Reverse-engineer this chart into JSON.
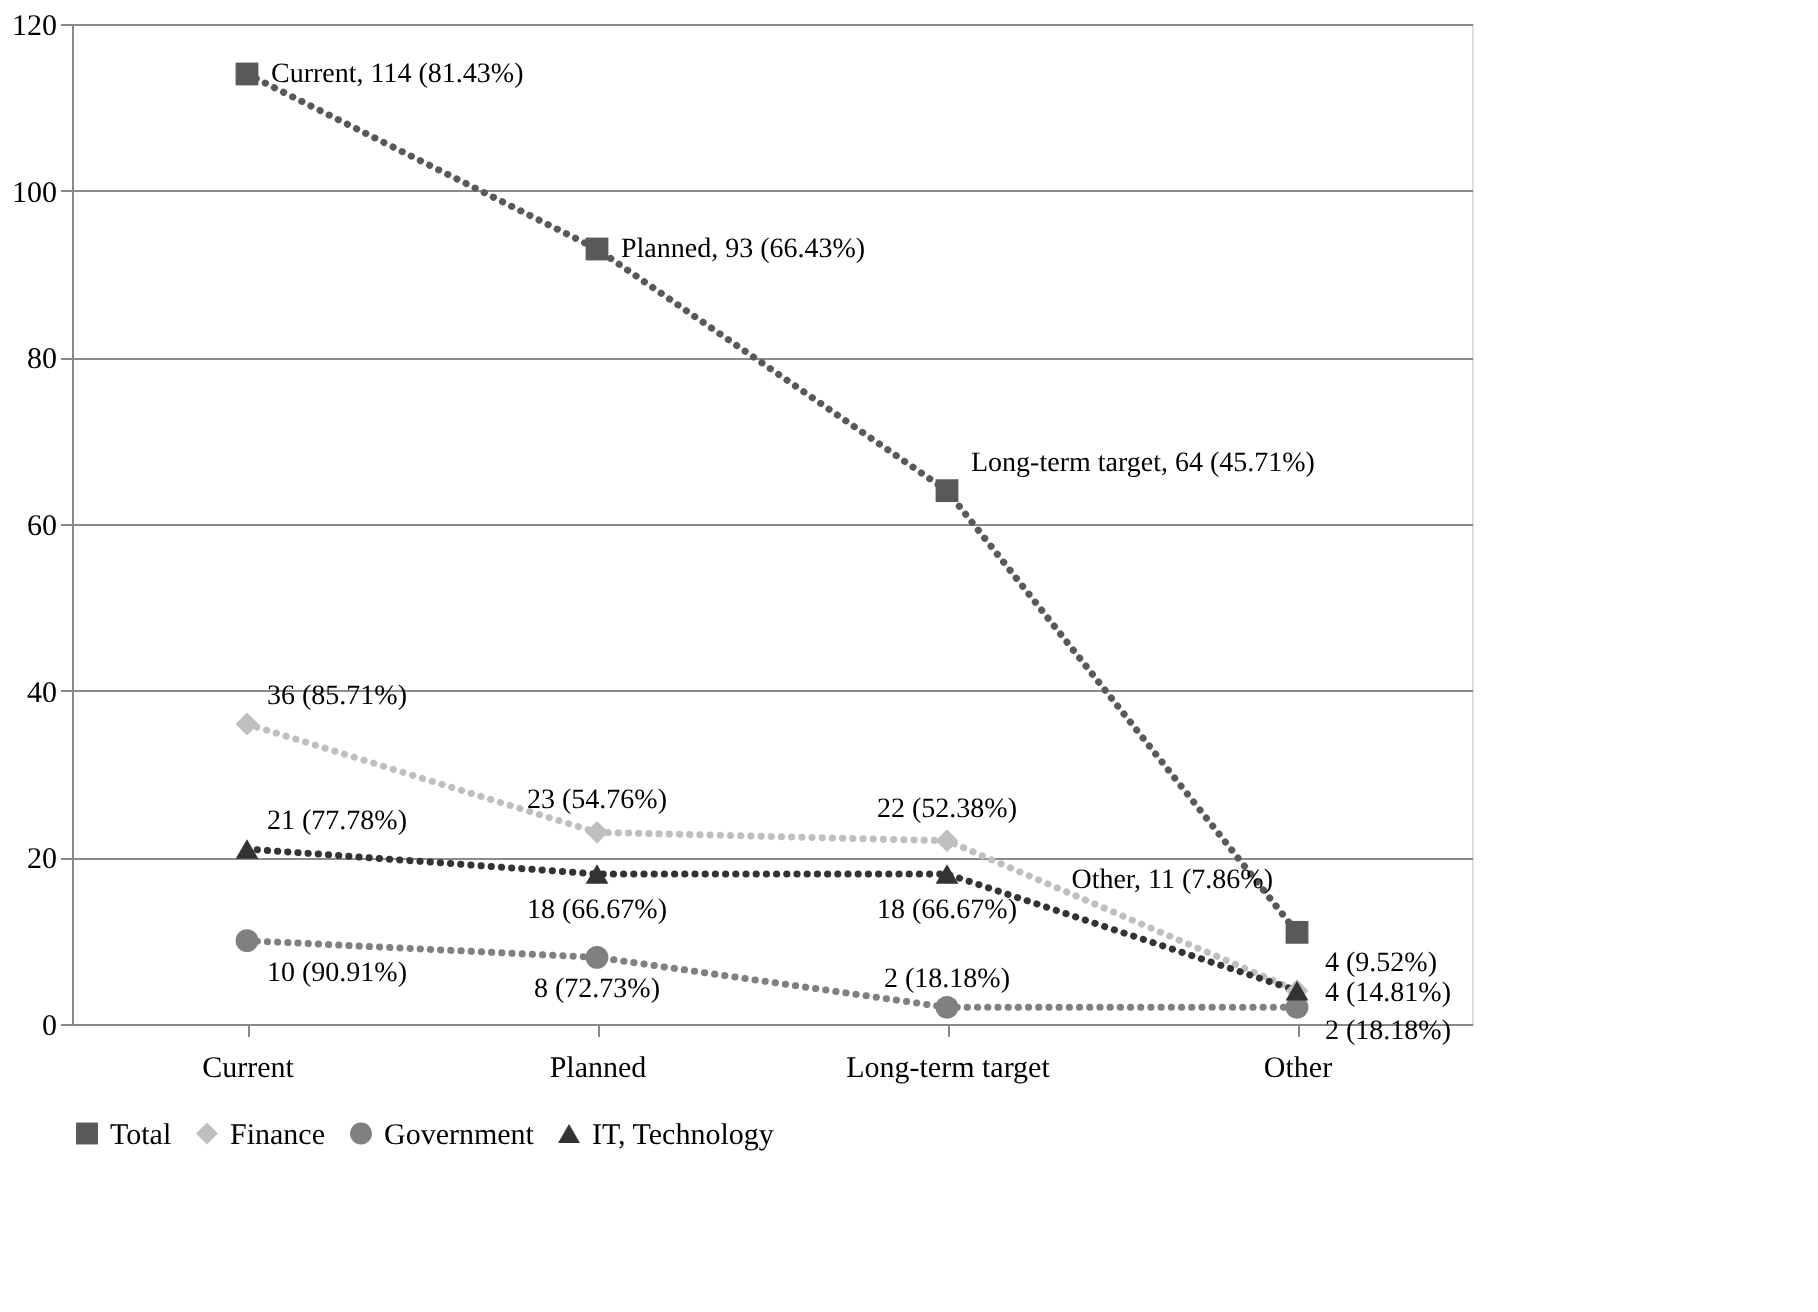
{
  "chart_data": {
    "type": "line",
    "categories": [
      "Current",
      "Planned",
      "Long-term target",
      "Other"
    ],
    "ylim": [
      0,
      120
    ],
    "yticks": [
      0,
      20,
      40,
      60,
      80,
      100,
      120
    ],
    "grid": "y",
    "legend": "bottom",
    "line_style": "dotted",
    "series": [
      {
        "name": "Total",
        "color": "#595959",
        "marker": "square",
        "values": [
          114,
          93,
          64,
          11
        ],
        "value_labels": [
          "Current, 114 (81.43%)",
          "Planned, 93 (66.43%)",
          "Long-term target, 64 (45.71%)",
          "Other, 11 (7.86%)"
        ]
      },
      {
        "name": "Finance",
        "color": "#bfbfbf",
        "marker": "diamond",
        "values": [
          36,
          23,
          22,
          4
        ],
        "value_labels": [
          "36 (85.71%)",
          "23 (54.76%)",
          "22 (52.38%)",
          "4 (9.52%)"
        ]
      },
      {
        "name": "Government",
        "color": "#808080",
        "marker": "circle",
        "values": [
          10,
          8,
          2,
          2
        ],
        "value_labels": [
          "10 (90.91%)",
          "8 (72.73%)",
          "2 (18.18%)",
          "2 (18.18%)"
        ]
      },
      {
        "name": "IT, Technology",
        "color": "#333333",
        "marker": "triangle",
        "values": [
          21,
          18,
          18,
          4
        ],
        "value_labels": [
          "21 (77.78%)",
          "18 (66.67%)",
          "18 (66.67%)",
          "4 (14.81%)"
        ]
      }
    ]
  }
}
